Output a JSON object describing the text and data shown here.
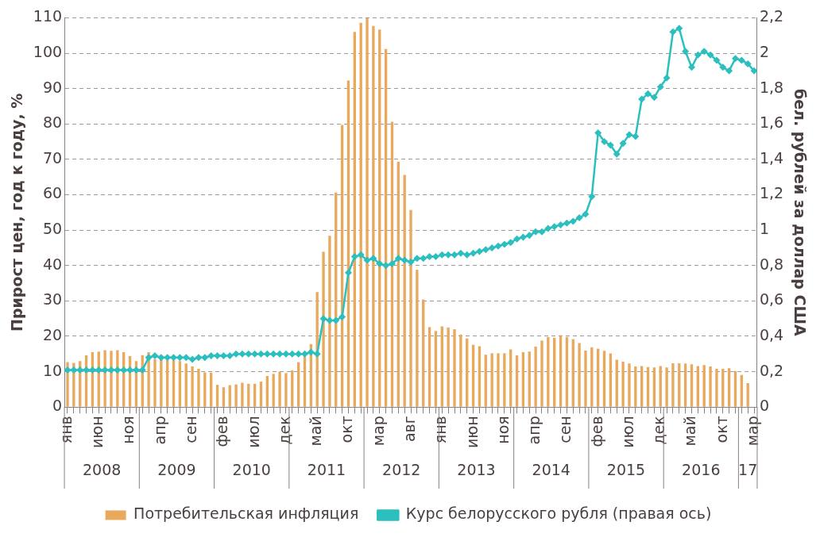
{
  "chart_data": {
    "type": "bar",
    "categories": [
      "янв",
      null,
      null,
      null,
      null,
      "июн",
      null,
      null,
      null,
      null,
      "ноя",
      null,
      null,
      null,
      null,
      "апр",
      null,
      null,
      null,
      null,
      "сен",
      null,
      null,
      null,
      null,
      "фев",
      null,
      null,
      null,
      null,
      "июл",
      null,
      null,
      null,
      null,
      "дек",
      null,
      null,
      null,
      null,
      "май",
      null,
      null,
      null,
      null,
      "окт",
      null,
      null,
      null,
      null,
      "мар",
      null,
      null,
      null,
      null,
      "авг",
      null,
      null,
      null,
      null,
      "янв",
      null,
      null,
      null,
      null,
      "июн",
      null,
      null,
      null,
      null,
      "ноя",
      null,
      null,
      null,
      null,
      "апр",
      null,
      null,
      null,
      null,
      "сен",
      null,
      null,
      null,
      null,
      "фев",
      null,
      null,
      null,
      null,
      "июл",
      null,
      null,
      null,
      null,
      "дек",
      null,
      null,
      null,
      null,
      "май",
      null,
      null,
      null,
      null,
      "окт",
      null,
      null,
      null,
      null,
      "мар"
    ],
    "series": [
      {
        "name": "Потребительская инфляция",
        "color": "#e8a95c",
        "values": [
          12.7,
          12.5,
          13.0,
          14.6,
          15.5,
          15.7,
          16.1,
          15.9,
          16.1,
          15.5,
          14.4,
          13.0,
          14.7,
          15.5,
          13.5,
          13.7,
          13.2,
          13.2,
          13.0,
          12.3,
          11.5,
          10.8,
          9.8,
          9.7,
          6.3,
          5.6,
          6.2,
          6.4,
          6.9,
          6.6,
          6.6,
          7.2,
          8.8,
          9.4,
          10.0,
          9.6,
          10.4,
          12.7,
          14.3,
          17.8,
          32.5,
          43.9,
          48.4,
          60.6,
          79.7,
          92.3,
          106.0,
          108.6,
          109.9,
          107.7,
          106.7,
          101.2,
          80.6,
          69.3,
          65.6,
          55.7,
          38.8,
          30.4,
          22.6,
          21.5,
          22.8,
          22.5,
          22.0,
          20.5,
          19.4,
          17.6,
          17.2,
          14.8,
          15.2,
          15.2,
          15.2,
          16.3,
          14.6,
          15.5,
          15.7,
          17.1,
          18.8,
          19.8,
          19.6,
          20.3,
          19.8,
          19.2,
          18.1,
          16.0,
          16.9,
          16.5,
          15.9,
          15.2,
          13.4,
          12.8,
          12.3,
          11.5,
          11.6,
          11.3,
          11.2,
          11.6,
          11.2,
          12.4,
          12.4,
          12.3,
          12.1,
          11.6,
          11.9,
          11.5,
          10.8,
          10.8,
          11.0,
          10.2,
          9.1,
          6.8,
          null
        ]
      },
      {
        "name": "Курс белорусского рубля (правая ось)",
        "type": "line",
        "color": "#2bbfbf",
        "axis": "y2",
        "values": [
          0.21,
          0.21,
          0.21,
          0.21,
          0.21,
          0.21,
          0.21,
          0.21,
          0.21,
          0.21,
          0.21,
          0.21,
          0.21,
          0.28,
          0.29,
          0.28,
          0.28,
          0.28,
          0.28,
          0.28,
          0.27,
          0.28,
          0.28,
          0.29,
          0.29,
          0.29,
          0.29,
          0.3,
          0.3,
          0.3,
          0.3,
          0.3,
          0.3,
          0.3,
          0.3,
          0.3,
          0.3,
          0.3,
          0.3,
          0.31,
          0.3,
          0.5,
          0.49,
          0.49,
          0.51,
          0.76,
          0.85,
          0.86,
          0.83,
          0.84,
          0.81,
          0.8,
          0.81,
          0.84,
          0.83,
          0.82,
          0.84,
          0.84,
          0.85,
          0.85,
          0.86,
          0.86,
          0.86,
          0.87,
          0.86,
          0.87,
          0.88,
          0.89,
          0.9,
          0.91,
          0.92,
          0.93,
          0.95,
          0.96,
          0.97,
          0.99,
          0.99,
          1.01,
          1.02,
          1.03,
          1.04,
          1.05,
          1.07,
          1.09,
          1.19,
          1.55,
          1.5,
          1.48,
          1.43,
          1.49,
          1.54,
          1.53,
          1.74,
          1.77,
          1.75,
          1.81,
          1.86,
          2.12,
          2.14,
          2.01,
          1.92,
          1.99,
          2.01,
          1.99,
          1.96,
          1.92,
          1.9,
          1.97,
          1.96,
          1.94,
          1.9
        ]
      }
    ],
    "ylabel": "Прирост цен, год к году, %",
    "y2label": "бел. рублей за доллар США",
    "ylim": [
      0,
      110
    ],
    "yticks": [
      0,
      10,
      20,
      30,
      40,
      50,
      60,
      70,
      80,
      90,
      100,
      110
    ],
    "y2lim": [
      0,
      2.2
    ],
    "y2ticks": [
      0,
      {
        "value": 0.2,
        "label": "0,2"
      },
      {
        "value": 0.4,
        "label": "0,4"
      },
      {
        "value": 0.6,
        "label": "0,6"
      },
      {
        "value": 0.8,
        "label": "0,8"
      },
      1,
      {
        "value": 1.2,
        "label": "1,2"
      },
      {
        "value": 1.4,
        "label": "1,4"
      },
      {
        "value": 1.6,
        "label": "1,6"
      },
      {
        "value": 1.8,
        "label": "1,8"
      },
      2,
      {
        "value": 2.2,
        "label": "2,2"
      }
    ],
    "grid": "y",
    "legend": "bottom",
    "marker": "diamond",
    "annotations": [
      "2008",
      "2009",
      "2010",
      "2011",
      "2012",
      "2013",
      "2014",
      "2015",
      "2016",
      "17"
    ]
  }
}
